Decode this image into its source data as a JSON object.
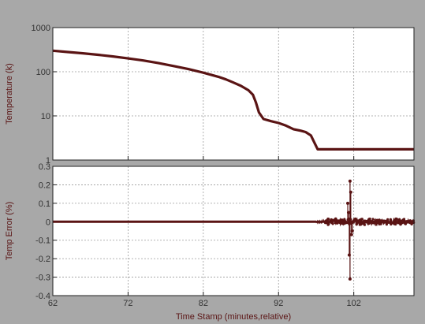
{
  "chart_data": [
    {
      "type": "line",
      "ylabel": "Temperature (k)",
      "yscale": "log",
      "xlim": [
        62,
        110
      ],
      "ylim": [
        1,
        1000
      ],
      "y_ticks": [
        "1",
        "10",
        "100",
        "1000"
      ],
      "x_ticks": [
        62,
        72,
        82,
        92,
        102
      ],
      "grid": true,
      "series": [
        {
          "color": "#5a1414",
          "x": [
            62,
            64,
            66,
            68,
            70,
            72,
            74,
            76,
            78,
            80,
            82,
            84,
            85,
            86,
            87,
            88,
            88.6,
            89,
            89.4,
            90,
            91,
            92,
            93,
            94,
            95,
            95.6,
            96.3,
            96.8,
            97.2,
            97.6,
            100,
            104,
            108,
            110
          ],
          "y": [
            300,
            280,
            262,
            242,
            222,
            200,
            180,
            158,
            135,
            115,
            95,
            77,
            67,
            57,
            48,
            38,
            30,
            20,
            12,
            8.5,
            7.6,
            6.9,
            6.0,
            5.0,
            4.6,
            4.3,
            3.6,
            2.4,
            1.75,
            1.75,
            1.75,
            1.75,
            1.75,
            1.75
          ]
        }
      ]
    },
    {
      "type": "line",
      "xlabel": "Time Stamp (minutes,relative)",
      "ylabel": "Temp Error (%)",
      "xlim": [
        62,
        110
      ],
      "ylim": [
        -0.4,
        0.3
      ],
      "y_ticks": [
        "0.3",
        "0.2",
        "0.1",
        "0",
        "-0.1",
        "-0.2",
        "-0.3",
        "-0.4"
      ],
      "x_ticks": [
        "62",
        "72",
        "82",
        "92",
        "102"
      ],
      "grid": true,
      "series": [
        {
          "color": "#5a1414",
          "baseline": {
            "x": [
              62,
              97
            ],
            "y": [
              0,
              0
            ]
          },
          "noise": {
            "x_range": [
              97,
              110
            ],
            "typical": [
              -0.012,
              0.012
            ],
            "dense_from": 98.2
          },
          "spikes": [
            {
              "x": 101.5,
              "y": 0.22
            },
            {
              "x": 101.5,
              "y": -0.31
            },
            {
              "x": 101.2,
              "y": 0.1
            },
            {
              "x": 101.7,
              "y": -0.07
            },
            {
              "x": 101.3,
              "y": 0.05
            },
            {
              "x": 101.8,
              "y": -0.05
            },
            {
              "x": 101.6,
              "y": 0.16
            },
            {
              "x": 101.4,
              "y": -0.18
            }
          ]
        }
      ]
    }
  ]
}
